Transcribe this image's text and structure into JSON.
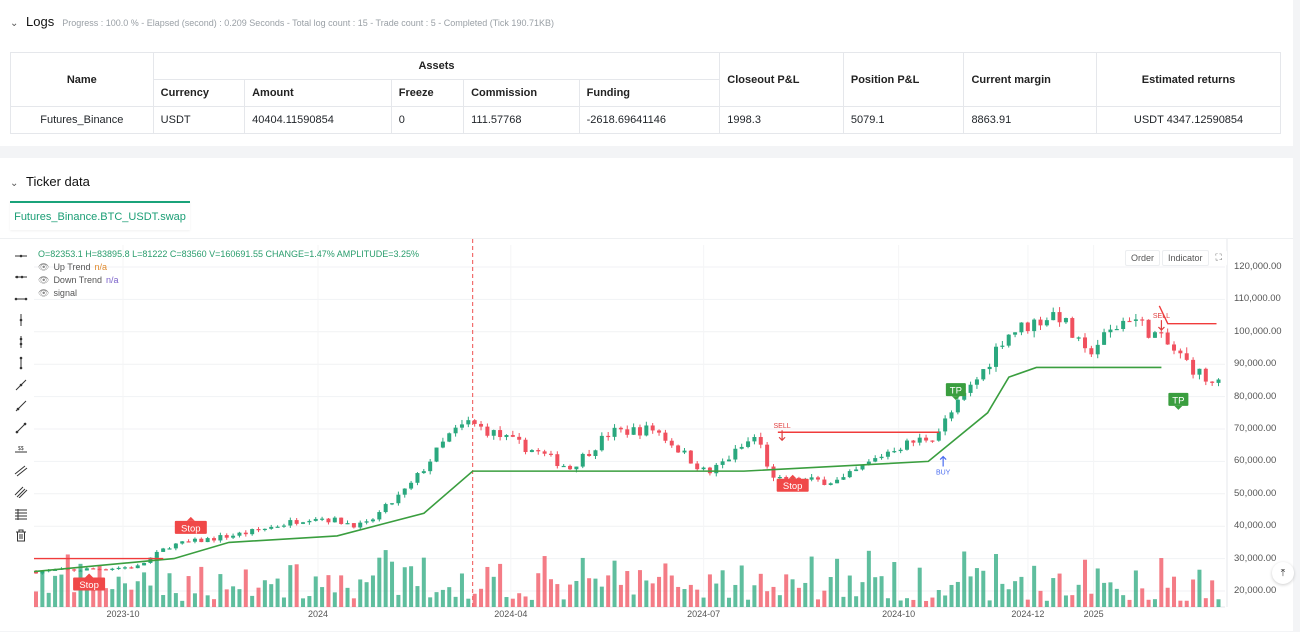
{
  "logs": {
    "chevron": "⌄",
    "title": "Logs",
    "meta": "Progress : 100.0 % - Elapsed (second) : 0.209 Seconds - Total log count : 15 - Trade count : 5 - Completed (Tick 190.71KB)"
  },
  "table": {
    "name_header": "Name",
    "assets_header": "Assets",
    "sub_headers": [
      "Currency",
      "Amount",
      "Freeze",
      "Commission",
      "Funding"
    ],
    "closeout_header": "Closeout P&L",
    "position_header": "Position P&L",
    "margin_header": "Current margin",
    "returns_header": "Estimated returns",
    "row": {
      "name": "Futures_Binance",
      "currency": "USDT",
      "amount": "40404.11590854",
      "freeze": "0",
      "commission": "111.57768",
      "funding": "-2618.69641146",
      "closeout": "1998.3",
      "position": "5079.1",
      "margin": "8863.91",
      "returns": "USDT 4347.12590854"
    }
  },
  "ticker": {
    "chevron": "⌄",
    "title": "Ticker data",
    "tab": "Futures_Binance.BTC_USDT.swap"
  },
  "legend": {
    "ohlc": "O=82353.1 H=83895.8 L=81222 C=83560 V=160691.55 CHANGE=1.47% AMPLITUDE=3.25%",
    "up_label": "Up Trend",
    "up_value": "n/a",
    "down_label": "Down Trend",
    "down_value": "n/a",
    "signal_label": "signal"
  },
  "chart_buttons": {
    "order": "Order",
    "indicator": "Indicator",
    "fullscreen": "⛶"
  },
  "colors": {
    "up": "#2aa87e",
    "down": "#f0505e",
    "trend": "#3a9e3f",
    "stop_line": "#f03b3b",
    "accent": "#1aa37a"
  },
  "chart_data": {
    "type": "candlestick",
    "y_ticks": [
      "120,000.00",
      "110,000.00",
      "100,000.00",
      "90,000.00",
      "80,000.00",
      "70,000.00",
      "60,000.00",
      "50,000.00",
      "40,000.00",
      "30,000.00",
      "20,000.00"
    ],
    "y_values": [
      120000,
      110000,
      100000,
      90000,
      80000,
      70000,
      60000,
      50000,
      40000,
      30000,
      20000
    ],
    "x_ticks": [
      "2023-10",
      "2024",
      "2024-04",
      "2024-07",
      "2024-10",
      "2024-12",
      "2025"
    ],
    "close_path": [
      [
        "2023-08-20",
        26000
      ],
      [
        "2023-09-10",
        26500
      ],
      [
        "2023-10-10",
        27500
      ],
      [
        "2023-10-25",
        34000
      ],
      [
        "2023-12-01",
        38000
      ],
      [
        "2024-01-01",
        43000
      ],
      [
        "2024-01-25",
        40000
      ],
      [
        "2024-02-15",
        52000
      ],
      [
        "2024-03-05",
        68000
      ],
      [
        "2024-03-14",
        72000
      ],
      [
        "2024-04-15",
        63000
      ],
      [
        "2024-05-01",
        58000
      ],
      [
        "2024-05-20",
        69000
      ],
      [
        "2024-06-10",
        70000
      ],
      [
        "2024-07-05",
        56000
      ],
      [
        "2024-07-28",
        68000
      ],
      [
        "2024-08-05",
        54000
      ],
      [
        "2024-09-06",
        54000
      ],
      [
        "2024-09-30",
        64000
      ],
      [
        "2024-10-20",
        68000
      ],
      [
        "2024-11-12",
        88000
      ],
      [
        "2024-11-22",
        99000
      ],
      [
        "2024-12-17",
        106000
      ],
      [
        "2024-12-30",
        93000
      ],
      [
        "2025-01-20",
        105000
      ],
      [
        "2025-02-05",
        97000
      ],
      [
        "2025-02-28",
        83560
      ]
    ],
    "up_trend_steps": [
      [
        "2023-08-20",
        26000
      ],
      [
        "2023-10-25",
        30000
      ],
      [
        "2023-11-20",
        35000
      ],
      [
        "2024-01-10",
        37000
      ],
      [
        "2024-02-20",
        44000
      ],
      [
        "2024-03-14",
        57000
      ],
      [
        "2024-06-01",
        57000
      ],
      [
        "2024-07-20",
        57000
      ],
      [
        "2024-10-15",
        60000
      ],
      [
        "2024-11-12",
        75000
      ],
      [
        "2024-11-22",
        86000
      ],
      [
        "2024-12-05",
        89000
      ],
      [
        "2025-02-02",
        89000
      ]
    ],
    "down_trend_segments": [
      [
        [
          "2023-08-20",
          30000
        ],
        [
          "2023-10-20",
          30000
        ]
      ],
      [
        [
          "2024-08-05",
          69000
        ],
        [
          "2024-10-20",
          69000
        ]
      ],
      [
        [
          "2025-02-01",
          108000
        ],
        [
          "2025-02-05",
          102500
        ],
        [
          "2025-02-28",
          102500
        ]
      ]
    ],
    "signals": [
      {
        "label": "Stop",
        "date": "2023-09-15",
        "price": 22000,
        "kind": "stop"
      },
      {
        "label": "Stop",
        "date": "2023-11-02",
        "price": 39500,
        "kind": "stop"
      },
      {
        "label": "SELL",
        "date": "2024-08-07",
        "price": 69000,
        "kind": "sell"
      },
      {
        "label": "Stop",
        "date": "2024-08-12",
        "price": 52500,
        "kind": "stop"
      },
      {
        "label": "BUY",
        "date": "2024-10-22",
        "price": 61500,
        "kind": "buy"
      },
      {
        "label": "TP",
        "date": "2024-10-28",
        "price": 82000,
        "kind": "tp"
      },
      {
        "label": "SELL",
        "date": "2025-02-02",
        "price": 103000,
        "kind": "sell"
      },
      {
        "label": "TP",
        "date": "2025-02-10",
        "price": 79000,
        "kind": "tp"
      }
    ],
    "cursor_date": "2024-03-14",
    "ylim": [
      17000,
      125000
    ]
  }
}
